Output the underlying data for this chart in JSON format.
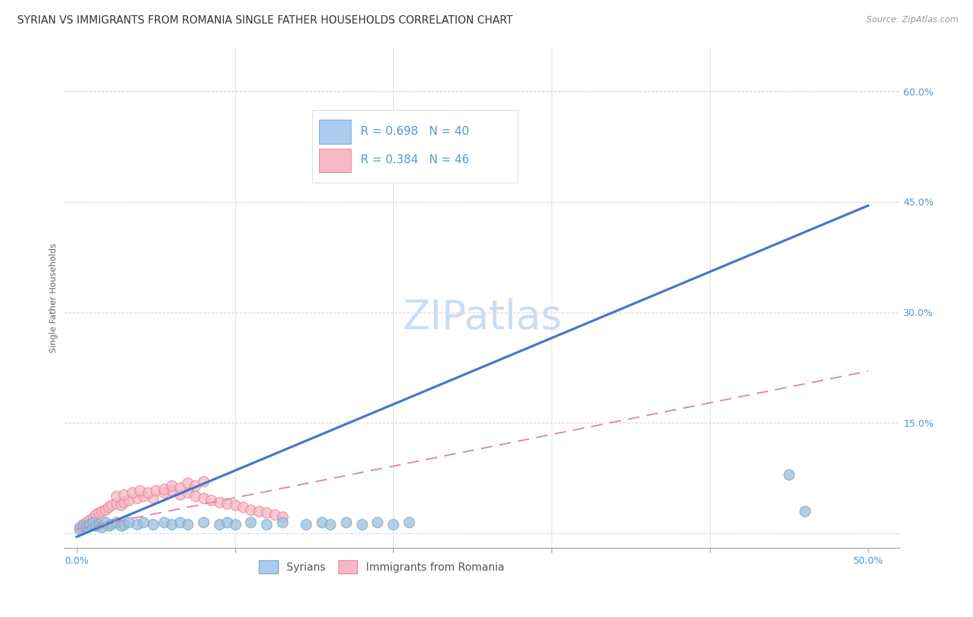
{
  "title": "SYRIAN VS IMMIGRANTS FROM ROMANIA SINGLE FATHER HOUSEHOLDS CORRELATION CHART",
  "source": "Source: ZipAtlas.com",
  "xlabel_ticks_labels": [
    "0.0%",
    "50.0%"
  ],
  "xlabel_ticks_vals": [
    0.0,
    0.5
  ],
  "xlabel_minor_vals": [
    0.1,
    0.2,
    0.3,
    0.4
  ],
  "ylabel_ticks_labels": [
    "60.0%",
    "45.0%",
    "30.0%",
    "15.0%"
  ],
  "ylabel_ticks_vals": [
    0.6,
    0.45,
    0.3,
    0.15
  ],
  "ylabel_label": "Single Father Households",
  "xlim": [
    -0.008,
    0.52
  ],
  "ylim": [
    -0.02,
    0.66
  ],
  "background_color": "#ffffff",
  "watermark_text": "ZIPatlas",
  "watermark_color": "#ccddf0",
  "syrians_color": "#9bbedd",
  "syrians_edge_color": "#7aaac8",
  "romania_color": "#f8b8c8",
  "romania_edge_color": "#e88898",
  "blue_line_color": "#4477cc",
  "pink_line_color": "#dd88aa",
  "blue_line_x0": 0.0,
  "blue_line_y0": -0.005,
  "blue_line_x1": 0.5,
  "blue_line_y1": 0.445,
  "pink_line_x0": 0.0,
  "pink_line_y0": 0.005,
  "pink_line_x1": 0.5,
  "pink_line_y1": 0.22,
  "syrians_scatter_x": [
    0.002,
    0.004,
    0.006,
    0.008,
    0.01,
    0.012,
    0.014,
    0.016,
    0.018,
    0.02,
    0.022,
    0.025,
    0.028,
    0.03,
    0.033,
    0.038,
    0.042,
    0.048,
    0.055,
    0.06,
    0.065,
    0.07,
    0.08,
    0.09,
    0.095,
    0.1,
    0.11,
    0.12,
    0.13,
    0.145,
    0.155,
    0.16,
    0.17,
    0.18,
    0.19,
    0.2,
    0.21,
    0.45,
    0.46,
    0.2
  ],
  "syrians_scatter_y": [
    0.005,
    0.01,
    0.008,
    0.012,
    0.015,
    0.01,
    0.012,
    0.008,
    0.015,
    0.01,
    0.012,
    0.015,
    0.01,
    0.012,
    0.015,
    0.012,
    0.015,
    0.012,
    0.015,
    0.012,
    0.015,
    0.012,
    0.015,
    0.012,
    0.015,
    0.012,
    0.015,
    0.012,
    0.015,
    0.012,
    0.015,
    0.012,
    0.015,
    0.012,
    0.015,
    0.012,
    0.015,
    0.08,
    0.03,
    0.505
  ],
  "romania_scatter_x": [
    0.002,
    0.004,
    0.006,
    0.008,
    0.01,
    0.012,
    0.014,
    0.016,
    0.018,
    0.02,
    0.022,
    0.025,
    0.028,
    0.03,
    0.033,
    0.038,
    0.042,
    0.048,
    0.025,
    0.03,
    0.035,
    0.04,
    0.045,
    0.05,
    0.055,
    0.06,
    0.065,
    0.07,
    0.075,
    0.08,
    0.085,
    0.09,
    0.095,
    0.1,
    0.105,
    0.11,
    0.115,
    0.12,
    0.125,
    0.13,
    0.055,
    0.06,
    0.065,
    0.07,
    0.075,
    0.08
  ],
  "romania_scatter_y": [
    0.008,
    0.012,
    0.015,
    0.018,
    0.02,
    0.025,
    0.028,
    0.03,
    0.032,
    0.035,
    0.038,
    0.04,
    0.038,
    0.042,
    0.045,
    0.048,
    0.05,
    0.048,
    0.05,
    0.052,
    0.055,
    0.058,
    0.055,
    0.058,
    0.055,
    0.058,
    0.052,
    0.055,
    0.05,
    0.048,
    0.045,
    0.042,
    0.04,
    0.038,
    0.035,
    0.032,
    0.03,
    0.028,
    0.025,
    0.022,
    0.06,
    0.065,
    0.062,
    0.068,
    0.065,
    0.07
  ],
  "grid_color": "#cccccc",
  "grid_alpha": 0.8,
  "title_fontsize": 11,
  "axis_label_fontsize": 9,
  "tick_fontsize": 10,
  "legend_fontsize": 12,
  "source_fontsize": 9,
  "watermark_fontsize": 42
}
